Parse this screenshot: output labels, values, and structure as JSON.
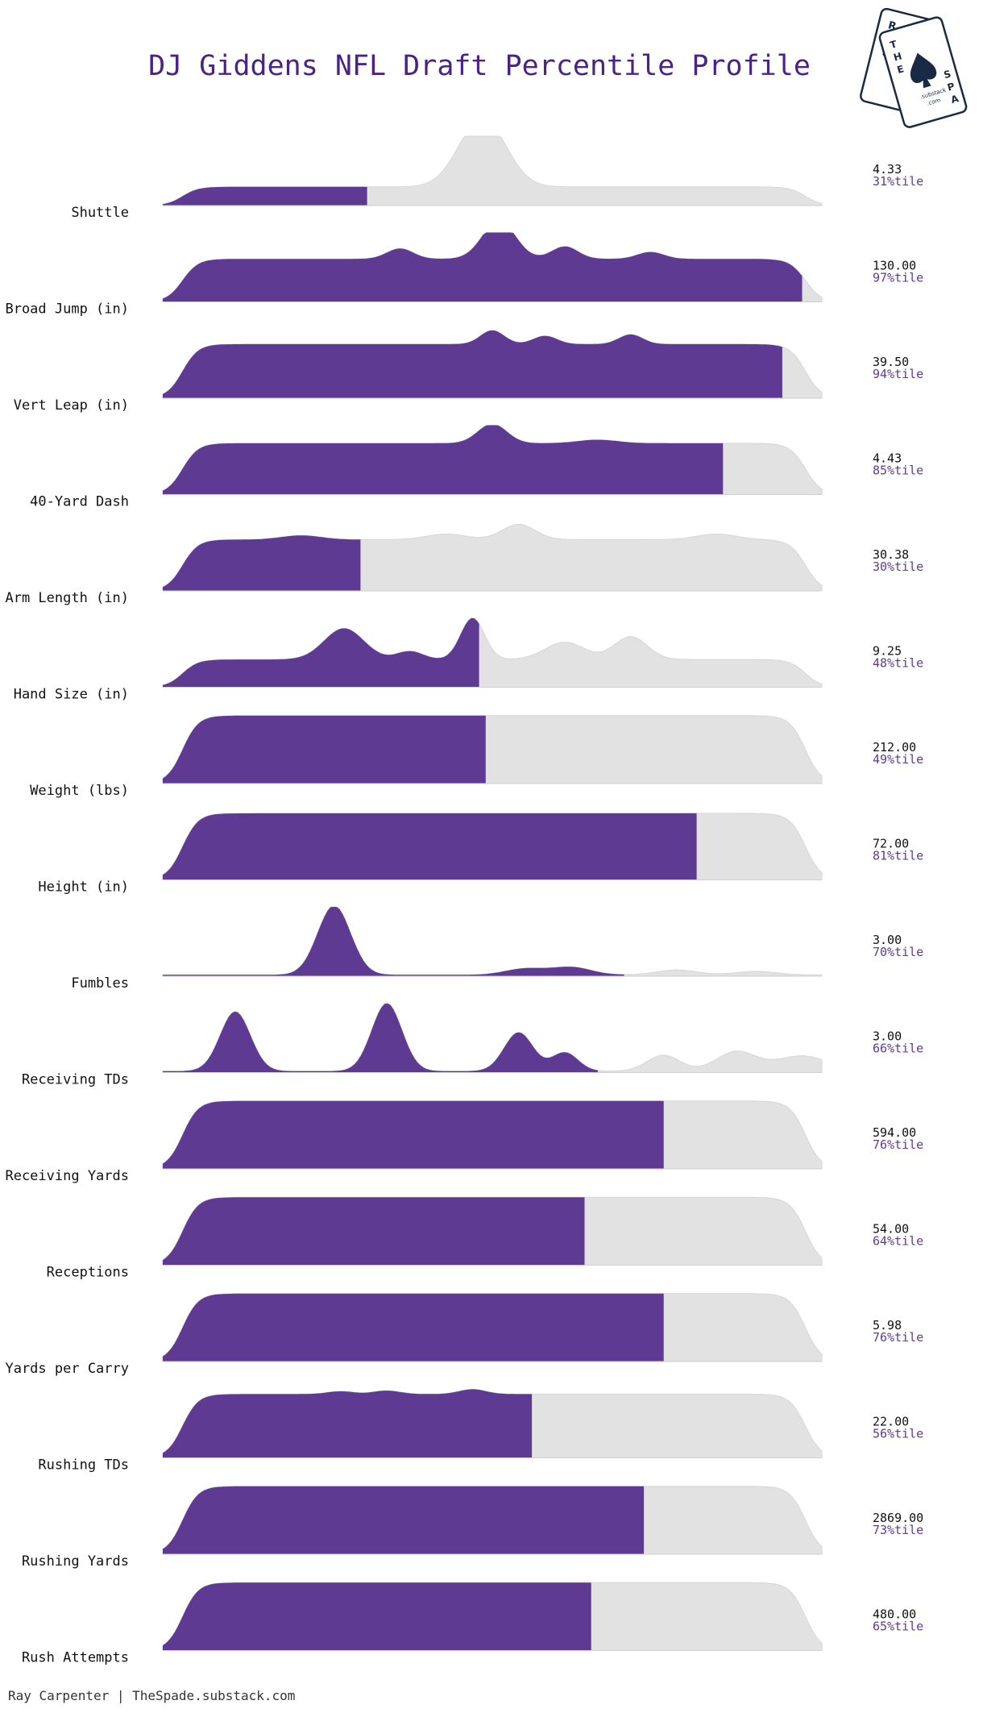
{
  "chart_data": {
    "type": "area",
    "title": "DJ Giddens NFL Draft Percentile Profile",
    "colors": {
      "fill": "#5e3a92",
      "background": "#e2e2e2",
      "value_text": "#111111",
      "percentile_text": "#5e3a92"
    },
    "rows": [
      {
        "label": "Shuttle",
        "value": "4.33",
        "percentile_label": "31%tile",
        "percentile": 31
      },
      {
        "label": "Broad Jump (in)",
        "value": "130.00",
        "percentile_label": "97%tile",
        "percentile": 97
      },
      {
        "label": "Vert Leap (in)",
        "value": "39.50",
        "percentile_label": "94%tile",
        "percentile": 94
      },
      {
        "label": "40-Yard Dash",
        "value": "4.43",
        "percentile_label": "85%tile",
        "percentile": 85
      },
      {
        "label": "Arm Length (in)",
        "value": "30.38",
        "percentile_label": "30%tile",
        "percentile": 30
      },
      {
        "label": "Hand Size (in)",
        "value": "9.25",
        "percentile_label": "48%tile",
        "percentile": 48
      },
      {
        "label": "Weight (lbs)",
        "value": "212.00",
        "percentile_label": "49%tile",
        "percentile": 49
      },
      {
        "label": "Height (in)",
        "value": "72.00",
        "percentile_label": "81%tile",
        "percentile": 81
      },
      {
        "label": "Fumbles",
        "value": "3.00",
        "percentile_label": "70%tile",
        "percentile": 70
      },
      {
        "label": "Receiving TDs",
        "value": "3.00",
        "percentile_label": "66%tile",
        "percentile": 66
      },
      {
        "label": "Receiving Yards",
        "value": "594.00",
        "percentile_label": "76%tile",
        "percentile": 76
      },
      {
        "label": "Receptions",
        "value": "54.00",
        "percentile_label": "64%tile",
        "percentile": 64
      },
      {
        "label": "Yards per Carry",
        "value": "5.98",
        "percentile_label": "76%tile",
        "percentile": 76
      },
      {
        "label": "Rushing TDs",
        "value": "22.00",
        "percentile_label": "56%tile",
        "percentile": 56
      },
      {
        "label": "Rushing Yards",
        "value": "2869.00",
        "percentile_label": "73%tile",
        "percentile": 73
      },
      {
        "label": "Rush Attempts",
        "value": "480.00",
        "percentile_label": "65%tile",
        "percentile": 65
      }
    ]
  },
  "footer": {
    "credit": "Ray Carpenter | TheSpade.substack.com"
  },
  "logo": {
    "text": "RACE THE SPADE",
    "sub": ".substack.com"
  }
}
